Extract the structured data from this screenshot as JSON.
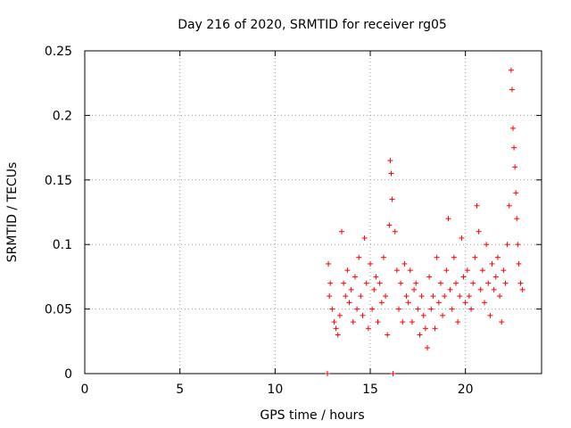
{
  "chart_data": {
    "type": "scatter",
    "title": "Day 216 of 2020, SRMTID for receiver rg05",
    "xlabel": "GPS time / hours",
    "ylabel": "SRMTID / TECUs",
    "xlim": [
      0,
      24
    ],
    "ylim": [
      0,
      0.25
    ],
    "xticks": [
      0,
      5,
      10,
      15,
      20
    ],
    "xtick_labels": [
      "0",
      "5",
      "10",
      "15",
      "20"
    ],
    "yticks": [
      0,
      0.05,
      0.1,
      0.15,
      0.2,
      0.25
    ],
    "ytick_labels": [
      "0",
      "0.05",
      "0.1",
      "0.15",
      "0.2",
      "0.25"
    ],
    "grid": true,
    "marker": "+",
    "color": "#ff0000",
    "series": [
      {
        "name": "SRMTID",
        "x": [
          12.75,
          12.8,
          12.85,
          12.9,
          13.0,
          13.1,
          13.2,
          13.3,
          13.4,
          13.5,
          13.6,
          13.7,
          13.8,
          13.9,
          14.0,
          14.1,
          14.2,
          14.3,
          14.4,
          14.5,
          14.6,
          14.7,
          14.8,
          14.9,
          15.0,
          15.1,
          15.2,
          15.3,
          15.4,
          15.5,
          15.6,
          15.7,
          15.8,
          15.9,
          16.0,
          16.05,
          16.1,
          16.15,
          16.2,
          16.3,
          16.4,
          16.5,
          16.6,
          16.7,
          16.8,
          16.9,
          17.0,
          17.1,
          17.2,
          17.3,
          17.4,
          17.5,
          17.6,
          17.7,
          17.8,
          17.9,
          18.0,
          18.1,
          18.2,
          18.3,
          18.4,
          18.5,
          18.6,
          18.7,
          18.8,
          18.9,
          19.0,
          19.1,
          19.2,
          19.3,
          19.4,
          19.5,
          19.6,
          19.7,
          19.8,
          19.9,
          20.0,
          20.1,
          20.2,
          20.3,
          20.4,
          20.5,
          20.6,
          20.7,
          20.8,
          20.9,
          21.0,
          21.1,
          21.2,
          21.3,
          21.4,
          21.5,
          21.6,
          21.7,
          21.8,
          21.9,
          22.0,
          22.1,
          22.2,
          22.3,
          22.4,
          22.45,
          22.5,
          22.55,
          22.6,
          22.65,
          22.7,
          22.75,
          22.8,
          22.9,
          23.0
        ],
        "y": [
          0.0,
          0.085,
          0.06,
          0.07,
          0.05,
          0.04,
          0.035,
          0.03,
          0.045,
          0.11,
          0.07,
          0.06,
          0.08,
          0.055,
          0.065,
          0.04,
          0.075,
          0.05,
          0.09,
          0.06,
          0.045,
          0.105,
          0.07,
          0.035,
          0.085,
          0.05,
          0.065,
          0.075,
          0.04,
          0.07,
          0.055,
          0.09,
          0.06,
          0.03,
          0.115,
          0.165,
          0.155,
          0.135,
          0.0,
          0.11,
          0.08,
          0.05,
          0.07,
          0.04,
          0.085,
          0.06,
          0.055,
          0.08,
          0.04,
          0.065,
          0.07,
          0.05,
          0.03,
          0.06,
          0.045,
          0.035,
          0.02,
          0.075,
          0.05,
          0.06,
          0.035,
          0.09,
          0.055,
          0.07,
          0.045,
          0.06,
          0.08,
          0.12,
          0.065,
          0.05,
          0.09,
          0.07,
          0.04,
          0.06,
          0.105,
          0.075,
          0.055,
          0.08,
          0.06,
          0.05,
          0.07,
          0.09,
          0.13,
          0.11,
          0.065,
          0.08,
          0.055,
          0.1,
          0.07,
          0.045,
          0.085,
          0.065,
          0.075,
          0.09,
          0.06,
          0.04,
          0.08,
          0.07,
          0.1,
          0.13,
          0.235,
          0.22,
          0.19,
          0.175,
          0.16,
          0.14,
          0.12,
          0.1,
          0.085,
          0.07,
          0.065
        ]
      }
    ]
  }
}
